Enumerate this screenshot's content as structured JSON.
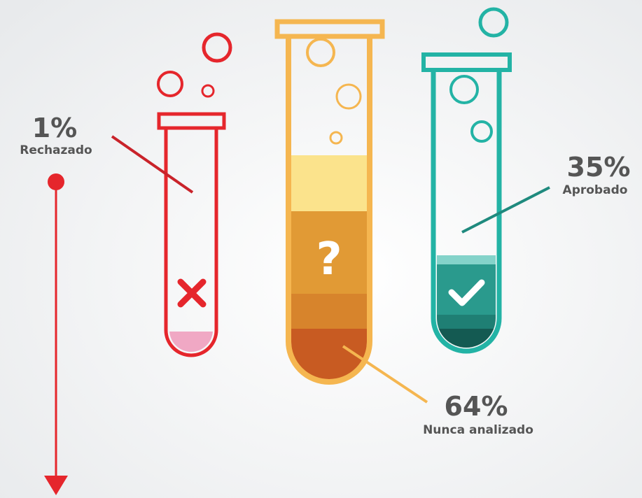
{
  "items": [
    {
      "percent": "1%",
      "label": "Rechazado"
    },
    {
      "percent": "64%",
      "label": "Nunca analizado"
    },
    {
      "percent": "35%",
      "label": "Aprobado"
    }
  ]
}
